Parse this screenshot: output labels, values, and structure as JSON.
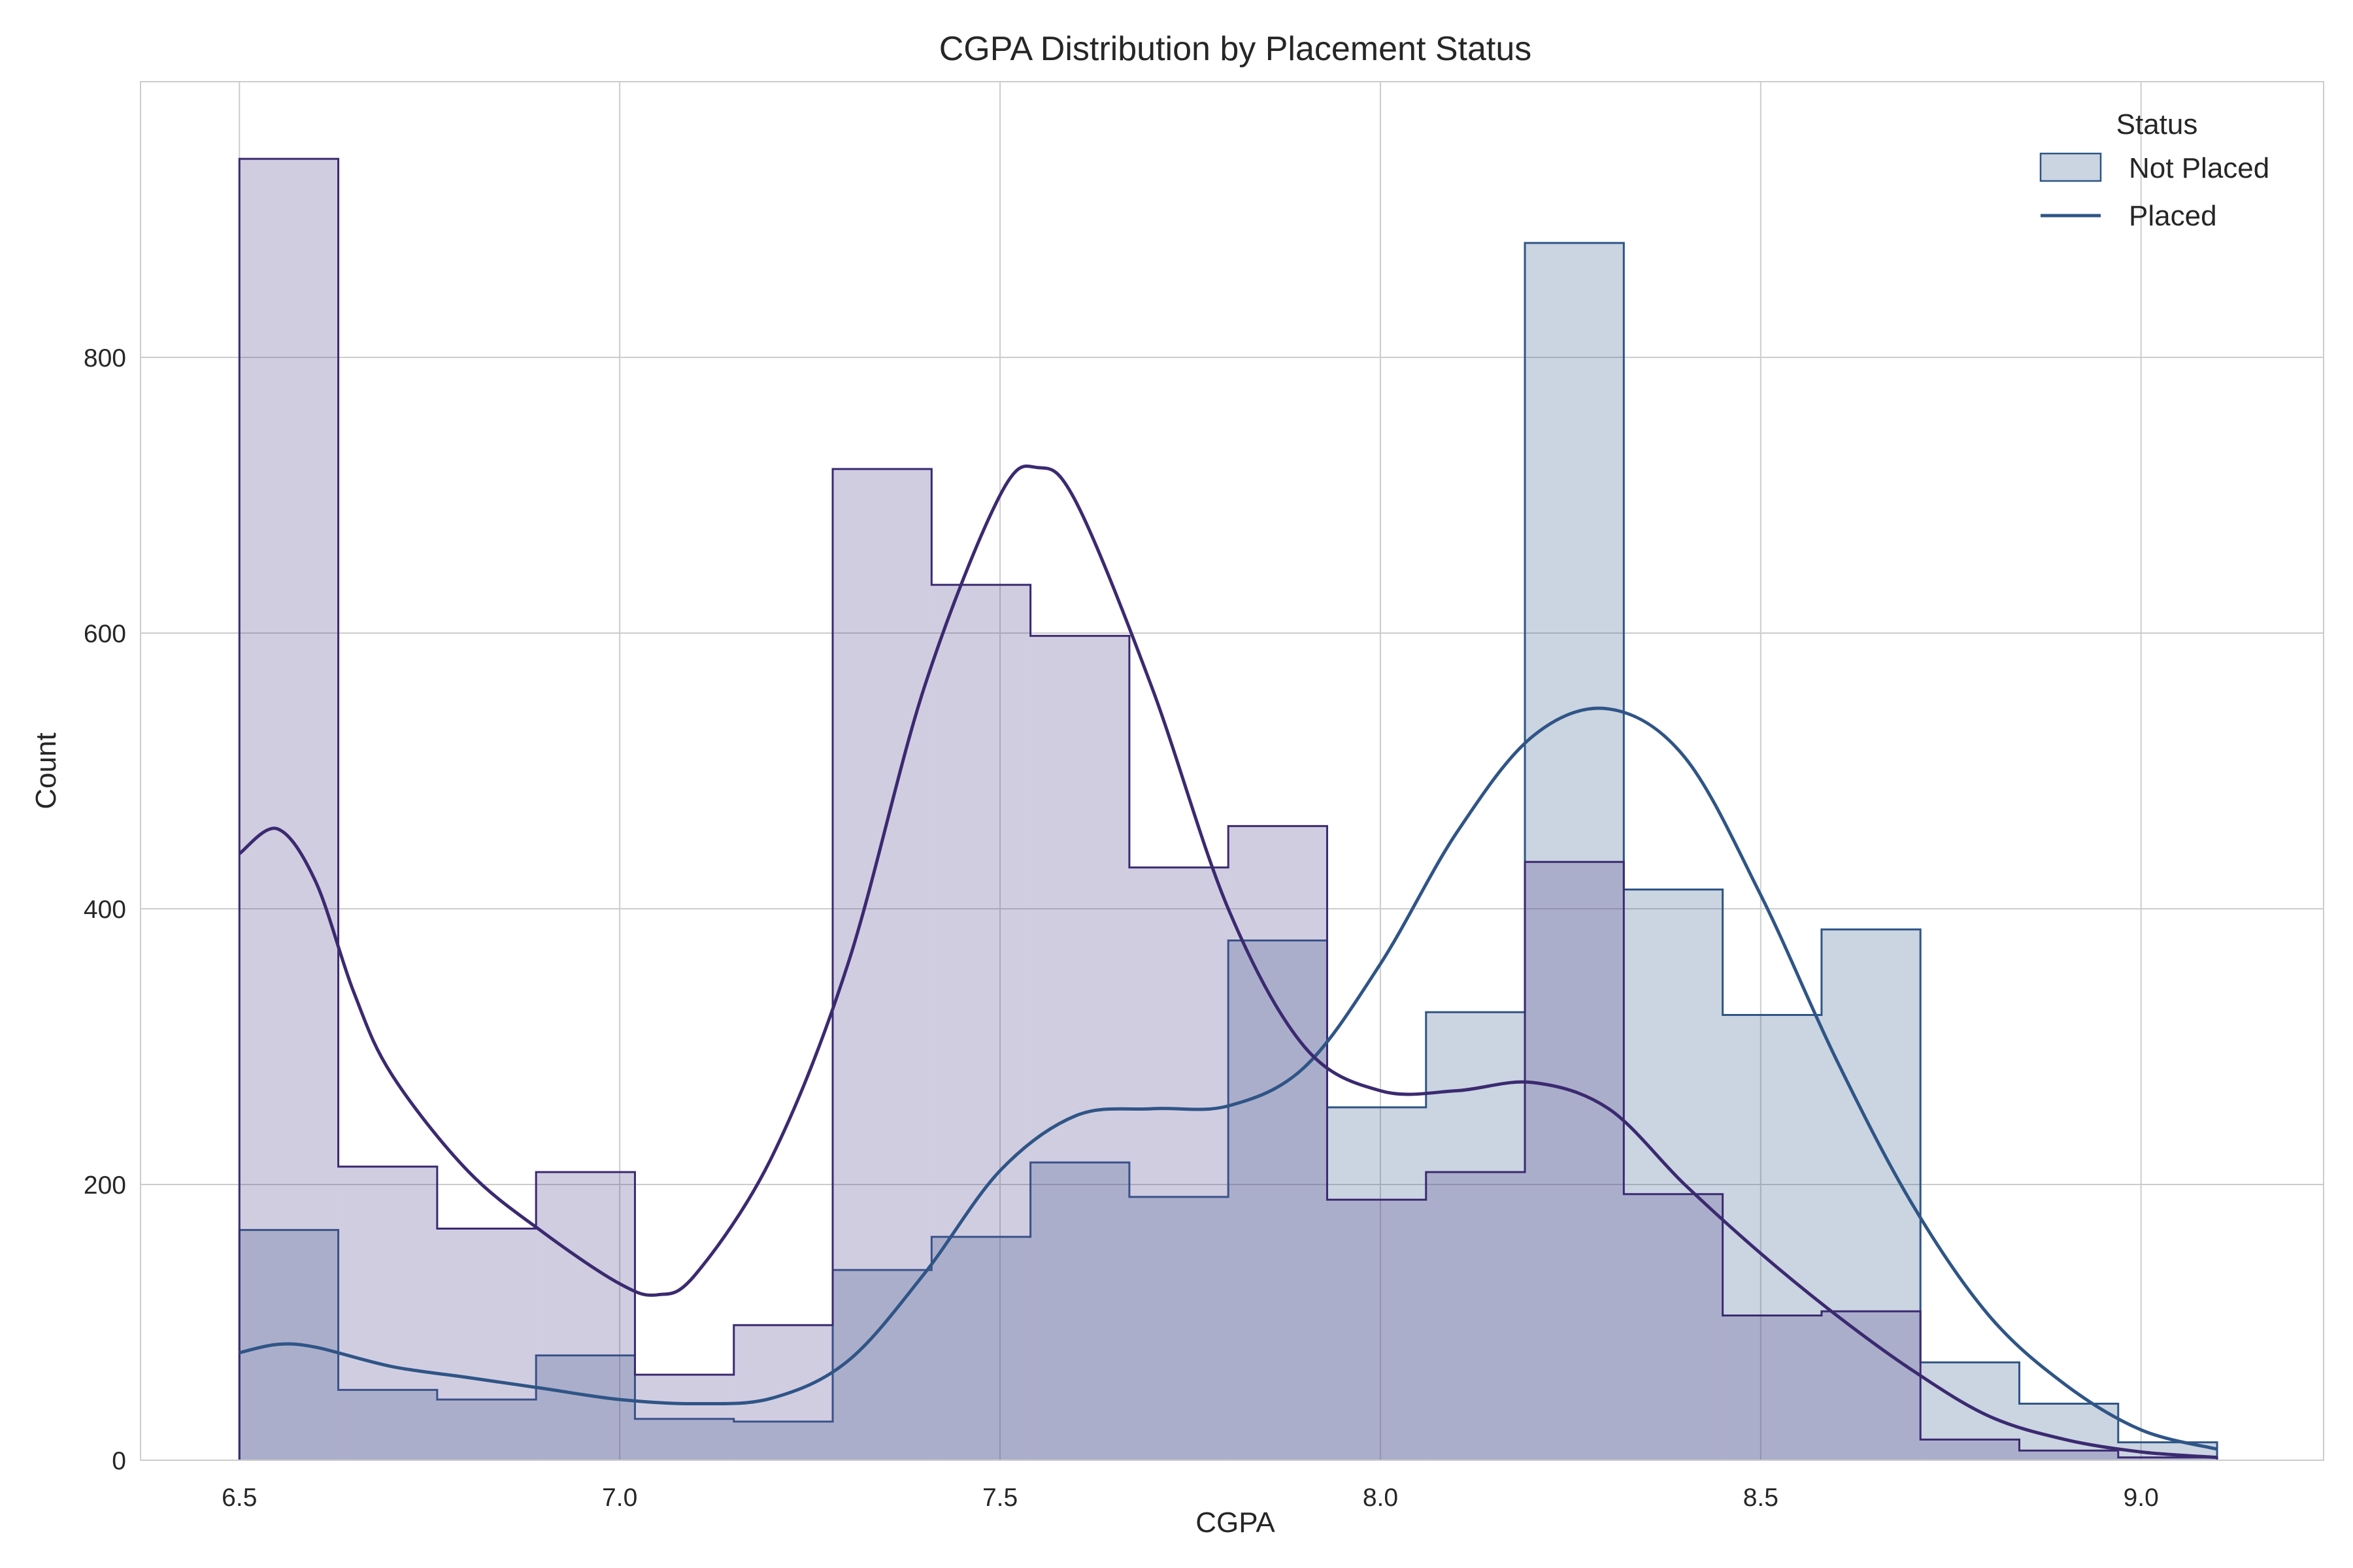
{
  "chart_data": {
    "type": "histogram",
    "title": "CGPA Distribution by Placement Status",
    "xlabel": "CGPA",
    "ylabel": "Count",
    "xlim": [
      6.37,
      9.24
    ],
    "ylim": [
      0,
      1000
    ],
    "xticks": [
      6.5,
      7.0,
      7.5,
      8.0,
      8.5,
      9.0
    ],
    "yticks": [
      0,
      200,
      400,
      600,
      800
    ],
    "grid": true,
    "legend": {
      "title": "Status",
      "position": "top-right",
      "entries": [
        "Not Placed",
        "Placed"
      ]
    },
    "bin_edges": [
      6.5,
      6.63,
      6.76,
      6.89,
      7.02,
      7.15,
      7.28,
      7.41,
      7.54,
      7.67,
      7.8,
      7.93,
      8.06,
      8.19,
      8.32,
      8.45,
      8.58,
      8.71,
      8.84,
      8.97,
      9.1
    ],
    "series": [
      {
        "name": "Not Placed",
        "color": "#2f5586",
        "fill": "#2f5586",
        "fill_opacity": 0.25,
        "counts": [
          167,
          51,
          44,
          76,
          30,
          28,
          138,
          162,
          216,
          191,
          377,
          256,
          325,
          883,
          414,
          323,
          385,
          71,
          41,
          13
        ],
        "kde": {
          "x": [
            6.5,
            6.55,
            6.6,
            6.7,
            6.8,
            6.9,
            7.0,
            7.1,
            7.2,
            7.3,
            7.4,
            7.5,
            7.6,
            7.7,
            7.8,
            7.9,
            8.0,
            8.1,
            8.2,
            8.3,
            8.4,
            8.5,
            8.6,
            8.7,
            8.8,
            8.9,
            9.0,
            9.1
          ],
          "y": [
            78,
            84,
            82,
            68,
            60,
            52,
            44,
            41,
            45,
            72,
            135,
            210,
            250,
            255,
            257,
            285,
            360,
            455,
            525,
            545,
            510,
            410,
            290,
            185,
            105,
            55,
            22,
            8
          ]
        }
      },
      {
        "name": "Placed",
        "color": "#3b2a70",
        "fill": "#5b4a92",
        "fill_opacity": 0.28,
        "counts": [
          944,
          213,
          168,
          209,
          62,
          98,
          719,
          635,
          598,
          430,
          460,
          189,
          209,
          434,
          193,
          105,
          108,
          15,
          7,
          2
        ],
        "kde": {
          "x": [
            6.5,
            6.55,
            6.6,
            6.65,
            6.7,
            6.8,
            6.9,
            7.0,
            7.05,
            7.1,
            7.2,
            7.3,
            7.4,
            7.5,
            7.55,
            7.6,
            7.7,
            7.8,
            7.9,
            8.0,
            8.1,
            8.2,
            8.3,
            8.4,
            8.5,
            8.6,
            8.7,
            8.8,
            8.9,
            9.0,
            9.1
          ],
          "y": [
            440,
            458,
            420,
            340,
            280,
            210,
            165,
            128,
            120,
            135,
            220,
            360,
            560,
            700,
            720,
            695,
            560,
            400,
            300,
            268,
            268,
            274,
            255,
            200,
            150,
            105,
            65,
            32,
            15,
            6,
            2
          ]
        }
      }
    ]
  }
}
